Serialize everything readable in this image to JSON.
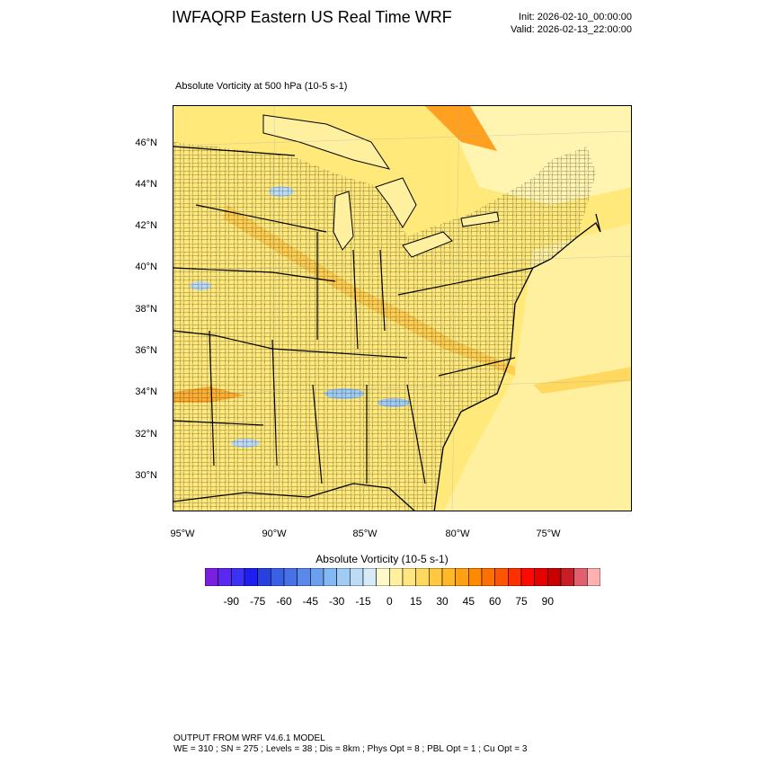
{
  "header": {
    "title": "IWFAQRP Eastern US Real Time WRF",
    "init": "Init: 2026-02-10_00:00:00",
    "valid": "Valid: 2026-02-13_22:00:00"
  },
  "field": {
    "label": "Absolute Vorticity at 500 hPa   (10-5 s-1)"
  },
  "map": {
    "lat_labels": [
      "46°N",
      "44°N",
      "42°N",
      "40°N",
      "38°N",
      "36°N",
      "34°N",
      "32°N",
      "30°N"
    ],
    "lon_labels": [
      "95°W",
      "90°W",
      "85°W",
      "80°W",
      "75°W"
    ],
    "background_color": "#ffe97a",
    "boundary_color": "#000000"
  },
  "colorbar": {
    "title": "Absolute Vorticity  (10-5 s-1)",
    "tick_labels": [
      "-90",
      "-75",
      "-60",
      "-45",
      "-30",
      "-15",
      "0",
      "15",
      "30",
      "45",
      "60",
      "75",
      "90"
    ],
    "colors": [
      "#7a1ee0",
      "#5a28f0",
      "#3c32f5",
      "#1e1ef0",
      "#2840e0",
      "#3a60e6",
      "#4a70e8",
      "#5a88ec",
      "#6aa0ee",
      "#84b8f2",
      "#a0ccf4",
      "#bcdcf6",
      "#d6eaf8",
      "#fff8c8",
      "#fff0a0",
      "#ffe680",
      "#ffd860",
      "#ffc840",
      "#ffb828",
      "#ffa010",
      "#ff8a00",
      "#ff7000",
      "#ff5400",
      "#ff3000",
      "#ff0a00",
      "#e60000",
      "#c80000",
      "#c81e28",
      "#e06070",
      "#ffb0b0"
    ]
  },
  "footer": {
    "line1": "OUTPUT FROM WRF V4.6.1 MODEL",
    "line2": "WE = 310 ; SN = 275 ; Levels = 38 ; Dis = 8km ; Phys Opt = 8 ; PBL Opt = 1 ; Cu Opt = 3"
  }
}
